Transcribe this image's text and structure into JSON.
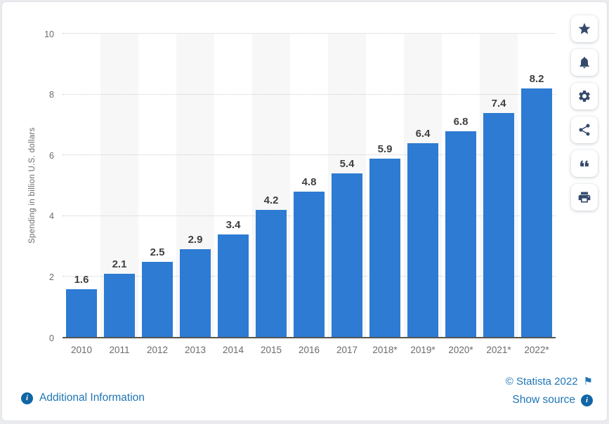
{
  "chart_data": {
    "type": "bar",
    "title": "",
    "categories": [
      "2010",
      "2011",
      "2012",
      "2013",
      "2014",
      "2015",
      "2016",
      "2017",
      "2018*",
      "2019*",
      "2020*",
      "2021*",
      "2022*"
    ],
    "values": [
      1.6,
      2.1,
      2.5,
      2.9,
      3.4,
      4.2,
      4.8,
      5.4,
      5.9,
      6.4,
      6.8,
      7.4,
      8.2
    ],
    "xlabel": "",
    "ylabel": "Spending in billion U.S. dollars",
    "ylim": [
      0,
      10
    ],
    "yticks": [
      0,
      2,
      4,
      6,
      8,
      10
    ],
    "grid": "horizontal-dotted",
    "legend": "none",
    "bar_color": "#2d7bd3",
    "alt_band_color": "#f7f7f7"
  },
  "toolbar": {
    "buttons": [
      {
        "name": "favorite",
        "icon": "star-icon"
      },
      {
        "name": "notifications",
        "icon": "bell-icon"
      },
      {
        "name": "settings",
        "icon": "gear-icon"
      },
      {
        "name": "share",
        "icon": "share-icon"
      },
      {
        "name": "cite",
        "icon": "quote-icon"
      },
      {
        "name": "print",
        "icon": "print-icon"
      }
    ]
  },
  "footer": {
    "additional_information": "Additional Information",
    "copyright": "© Statista 2022",
    "show_source": "Show source",
    "info_icon": "info-icon",
    "flag_icon": "flag-icon"
  },
  "colors": {
    "bar": "#2d7bd3",
    "link": "#2076b6",
    "info_badge": "#1266a5",
    "toolbar_icon": "#354a6b",
    "axis_text": "#6b6b6b",
    "data_label": "#3f3f3f"
  }
}
